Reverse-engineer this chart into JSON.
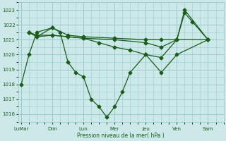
{
  "bg_color": "#cce8e8",
  "grid_color": "#99cccc",
  "line_color": "#1a5c1a",
  "marker_color": "#1a5c1a",
  "xlabel": "Pression niveau de la mer( hPa )",
  "xlabel_color": "#1a5c1a",
  "tick_color": "#1a5c1a",
  "ylim": [
    1015.5,
    1023.5
  ],
  "yticks": [
    1016,
    1017,
    1018,
    1019,
    1020,
    1021,
    1022,
    1023
  ],
  "xtick_labels": [
    "LuMar",
    "Dim",
    "Lun",
    "Mer",
    "Jeu",
    "Ven",
    "Sam"
  ],
  "xtick_positions": [
    0,
    2,
    4,
    6,
    8,
    10,
    12
  ],
  "xlim": [
    -0.2,
    13.0
  ],
  "series1": {
    "x": [
      0,
      0.5,
      1,
      2,
      2.5,
      3,
      3.5,
      4,
      4.5,
      5,
      5.5,
      6,
      6.5,
      7,
      8,
      9,
      10,
      12
    ],
    "y": [
      1018,
      1020,
      1021.5,
      1021.8,
      1021.5,
      1019.5,
      1018.8,
      1018.5,
      1017.0,
      1016.5,
      1015.8,
      1016.5,
      1017.5,
      1018.8,
      1020.0,
      1018.8,
      1020.0,
      1021.0
    ]
  },
  "series2": {
    "x": [
      0.5,
      1,
      2,
      3,
      4,
      6,
      8,
      9,
      10,
      10.5,
      11,
      12
    ],
    "y": [
      1021.5,
      1021.2,
      1021.8,
      1021.3,
      1021.2,
      1021.1,
      1021.0,
      1021.0,
      1021.0,
      1022.8,
      1022.2,
      1021.0
    ]
  },
  "series3": {
    "x": [
      0.5,
      1,
      2,
      3,
      4,
      6,
      8,
      9,
      10,
      10.5,
      12
    ],
    "y": [
      1021.5,
      1021.2,
      1021.3,
      1021.2,
      1021.1,
      1021.0,
      1020.8,
      1020.5,
      1021.0,
      1023.0,
      1021.0
    ]
  },
  "series4": {
    "x": [
      0.5,
      1,
      2,
      3,
      4,
      5,
      6,
      7,
      8,
      9,
      10,
      12
    ],
    "y": [
      1021.5,
      1021.3,
      1021.3,
      1021.2,
      1021.1,
      1020.8,
      1020.5,
      1020.3,
      1020.0,
      1019.8,
      1021.0,
      1021.0
    ]
  }
}
